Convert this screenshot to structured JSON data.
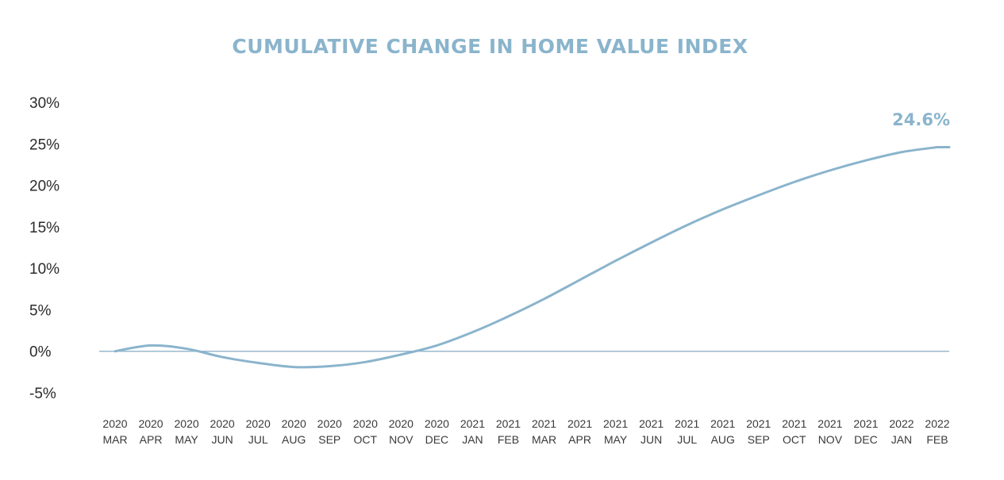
{
  "colors": {
    "line": "#8ab4cc",
    "title": "#8ab4cc",
    "zero_line": "#9ab9cc"
  },
  "chart_data": {
    "type": "line",
    "title": "CUMULATIVE CHANGE IN HOME VALUE INDEX",
    "xlabel": "",
    "ylabel": "",
    "ylim": [
      -5,
      30
    ],
    "y_ticks": [
      "30%",
      "25%",
      "20%",
      "15%",
      "10%",
      "5%",
      "0%",
      "-5%"
    ],
    "categories": [
      [
        "2020",
        "MAR"
      ],
      [
        "2020",
        "APR"
      ],
      [
        "2020",
        "MAY"
      ],
      [
        "2020",
        "JUN"
      ],
      [
        "2020",
        "JUL"
      ],
      [
        "2020",
        "AUG"
      ],
      [
        "2020",
        "SEP"
      ],
      [
        "2020",
        "OCT"
      ],
      [
        "2020",
        "NOV"
      ],
      [
        "2020",
        "DEC"
      ],
      [
        "2021",
        "JAN"
      ],
      [
        "2021",
        "FEB"
      ],
      [
        "2021",
        "MAR"
      ],
      [
        "2021",
        "APR"
      ],
      [
        "2021",
        "MAY"
      ],
      [
        "2021",
        "JUN"
      ],
      [
        "2021",
        "JUL"
      ],
      [
        "2021",
        "AUG"
      ],
      [
        "2021",
        "SEP"
      ],
      [
        "2021",
        "OCT"
      ],
      [
        "2021",
        "NOV"
      ],
      [
        "2021",
        "DEC"
      ],
      [
        "2022",
        "JAN"
      ],
      [
        "2022",
        "FEB"
      ]
    ],
    "series": [
      {
        "values": [
          0.0,
          0.7,
          0.3,
          -0.7,
          -1.4,
          -1.9,
          -1.8,
          -1.3,
          -0.4,
          0.7,
          2.3,
          4.2,
          6.3,
          8.6,
          10.9,
          13.1,
          15.2,
          17.1,
          18.8,
          20.4,
          21.8,
          23.0,
          24.0,
          24.6
        ]
      }
    ],
    "end_label": "24.6%",
    "grid": false,
    "legend": "none"
  }
}
